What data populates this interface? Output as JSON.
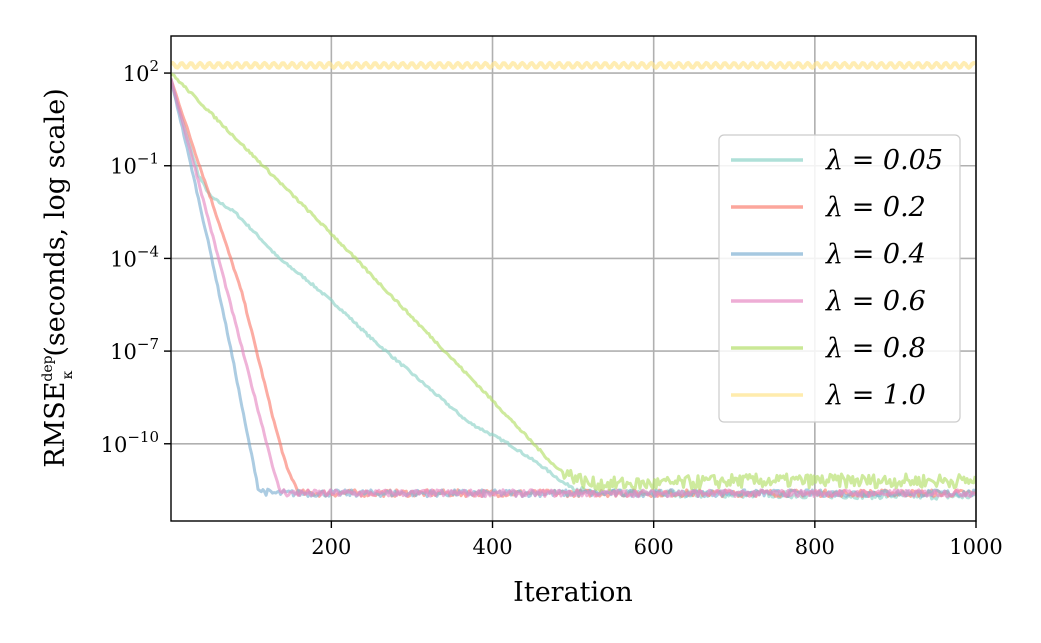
{
  "chart_data": {
    "type": "line",
    "title": "",
    "xlabel": "Iteration",
    "ylabel": "RMSE",
    "ylabel_sup": "dep",
    "ylabel_sub": "κ",
    "ylabel_suffix": "(seconds, log scale)",
    "y_scale": "log",
    "xlim": [
      1,
      1000
    ],
    "ylim_exp": [
      -12.5,
      3.2
    ],
    "grid": true,
    "legend_position": "center-right",
    "x_ticks": [
      200,
      400,
      600,
      800,
      1000
    ],
    "x_tick_labels": [
      "200",
      "400",
      "600",
      "800",
      "1000"
    ],
    "y_ticks_exp": [
      2,
      -1,
      -4,
      -7,
      -10
    ],
    "y_tick_labels": [
      {
        "base": "10",
        "exp": "2"
      },
      {
        "base": "10",
        "exp": "−1"
      },
      {
        "base": "10",
        "exp": "−4"
      },
      {
        "base": "10",
        "exp": "−7"
      },
      {
        "base": "10",
        "exp": "−10"
      }
    ],
    "series": [
      {
        "name": "λ = 0.05",
        "color": "#8dd3c7",
        "points": [
          [
            1,
            1.7
          ],
          [
            35,
            -1.3
          ],
          [
            50,
            -2.0
          ],
          [
            80,
            -2.5
          ],
          [
            110,
            -3.3
          ],
          [
            135,
            -4.0
          ],
          [
            170,
            -4.7
          ],
          [
            210,
            -5.6
          ],
          [
            250,
            -6.6
          ],
          [
            290,
            -7.5
          ],
          [
            330,
            -8.4
          ],
          [
            370,
            -9.3
          ],
          [
            420,
            -10.0
          ],
          [
            460,
            -10.7
          ],
          [
            490,
            -11.3
          ],
          [
            520,
            -11.6
          ],
          [
            560,
            -11.6
          ],
          [
            1000,
            -11.7
          ]
        ]
      },
      {
        "name": "λ = 0.2",
        "color": "#fb8072",
        "points": [
          [
            1,
            1.8
          ],
          [
            30,
            -0.5
          ],
          [
            60,
            -2.8
          ],
          [
            90,
            -5.2
          ],
          [
            110,
            -7.3
          ],
          [
            130,
            -9.4
          ],
          [
            145,
            -10.8
          ],
          [
            160,
            -11.6
          ],
          [
            1000,
            -11.6
          ]
        ]
      },
      {
        "name": "λ = 0.4",
        "color": "#80b1d3",
        "points": [
          [
            1,
            1.8
          ],
          [
            25,
            -0.9
          ],
          [
            50,
            -3.8
          ],
          [
            75,
            -6.9
          ],
          [
            95,
            -9.6
          ],
          [
            110,
            -11.5
          ],
          [
            125,
            -11.6
          ],
          [
            1000,
            -11.6
          ]
        ]
      },
      {
        "name": "λ = 0.6",
        "color": "#e78ac3",
        "points": [
          [
            1,
            1.8
          ],
          [
            30,
            -1.0
          ],
          [
            60,
            -4.0
          ],
          [
            90,
            -7.0
          ],
          [
            120,
            -10.0
          ],
          [
            135,
            -11.5
          ],
          [
            145,
            -11.6
          ],
          [
            1000,
            -11.6
          ]
        ]
      },
      {
        "name": "λ = 0.8",
        "color": "#b3de69",
        "points": [
          [
            1,
            2.0
          ],
          [
            100,
            -0.6
          ],
          [
            200,
            -3.2
          ],
          [
            300,
            -5.9
          ],
          [
            400,
            -8.6
          ],
          [
            480,
            -10.8
          ],
          [
            520,
            -11.3
          ],
          [
            600,
            -11.3
          ],
          [
            700,
            -11.2
          ],
          [
            800,
            -11.2
          ],
          [
            1000,
            -11.2
          ]
        ]
      },
      {
        "name": "λ = 1.0",
        "color": "#ffe48a",
        "points": [
          [
            1,
            2.25
          ],
          [
            1000,
            2.25
          ]
        ]
      }
    ]
  }
}
